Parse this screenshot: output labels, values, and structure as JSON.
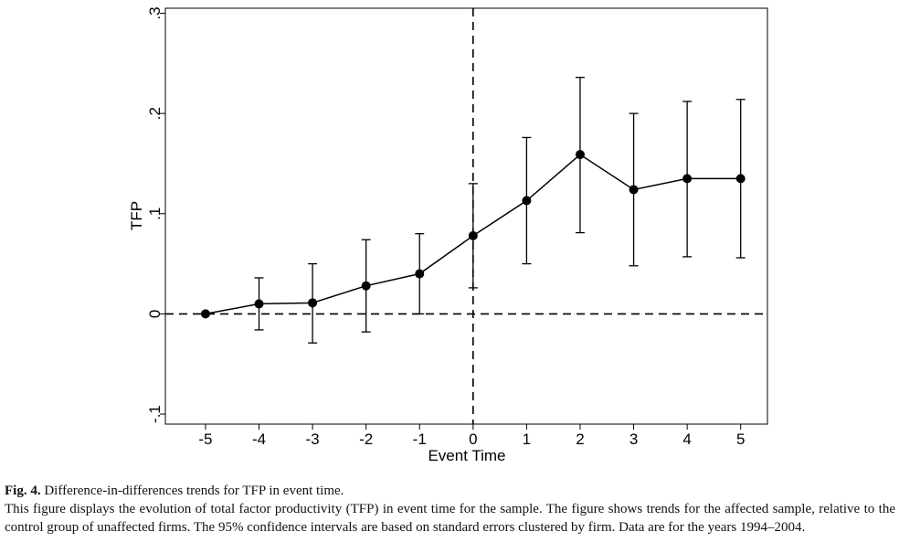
{
  "chart_data": {
    "type": "line",
    "xlabel": "Event Time",
    "ylabel": "TFP",
    "xlim": [
      -5.75,
      5.5
    ],
    "ylim": [
      -0.11,
      0.305
    ],
    "x_ticks": [
      -5,
      -4,
      -3,
      -2,
      -1,
      0,
      1,
      2,
      3,
      4,
      5
    ],
    "x_tick_labels": [
      "-5",
      "-4",
      "-3",
      "-2",
      "-1",
      "0",
      "1",
      "2",
      "3",
      "4",
      "5"
    ],
    "y_ticks": [
      -0.1,
      0,
      0.1,
      0.2,
      0.3
    ],
    "y_tick_labels": [
      "-.1",
      "0",
      ".1",
      ".2",
      ".3"
    ],
    "grid": false,
    "reference_lines": {
      "horizontal_y": 0,
      "vertical_x": 0,
      "style": "dashed"
    },
    "series": [
      {
        "x": [
          -5,
          -4,
          -3,
          -2,
          -1,
          0,
          1,
          2,
          3,
          4,
          5
        ],
        "values": [
          0.0,
          0.01,
          0.011,
          0.028,
          0.04,
          0.078,
          0.113,
          0.159,
          0.124,
          0.135,
          0.135
        ],
        "ci_lower": [
          0.0,
          -0.016,
          -0.029,
          -0.018,
          0.0,
          0.026,
          0.05,
          0.081,
          0.048,
          0.057,
          0.056
        ],
        "ci_upper": [
          0.0,
          0.036,
          0.05,
          0.074,
          0.08,
          0.13,
          0.176,
          0.236,
          0.2,
          0.212,
          0.214
        ]
      }
    ]
  },
  "caption": {
    "label": "Fig. 4.",
    "title": "Difference-in-differences trends for TFP in event time.",
    "description": "This figure displays the evolution of total factor productivity (TFP) in event time for the sample. The figure shows trends for the affected sample, relative to the control group of unaffected firms. The 95% confidence intervals are based on standard errors clustered by firm. Data are for the years 1994–2004."
  }
}
